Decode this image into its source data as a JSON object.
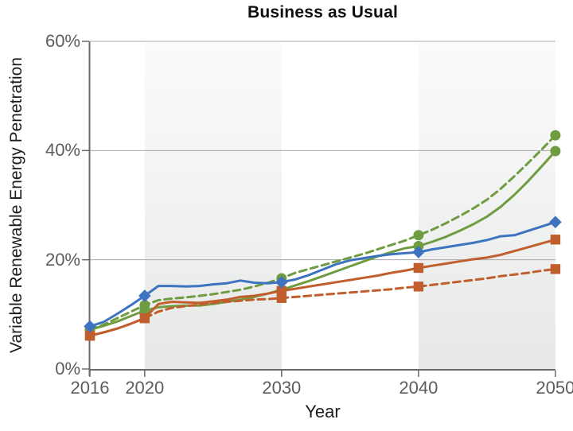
{
  "title": "Business as Usual",
  "axes": {
    "x_label": "Year",
    "y_label": "Variable Renewable Energy Penetration"
  },
  "colors": {
    "blue_series": "#3e73c0",
    "orange_series": "#c05f2d",
    "green_series": "#6f9c41",
    "gridline": "#a9a9a9",
    "axis_line": "#6a6a6a",
    "tick_label": "#5d5d5d",
    "band_top": "#fbfbfb",
    "band_bottom": "#e7e8e8"
  },
  "chart_data": {
    "type": "line",
    "title": "Business as Usual",
    "xlabel": "Year",
    "ylabel": "Variable Renewable Energy Penetration",
    "xlim": [
      2016,
      2050
    ],
    "ylim": [
      0,
      60
    ],
    "x_ticks": [
      2016,
      2020,
      2030,
      2040,
      2050
    ],
    "x_tick_labels": [
      "2016",
      "2020",
      "2030",
      "2040",
      "2050"
    ],
    "y_ticks": [
      0,
      20,
      40,
      60
    ],
    "y_tick_labels": [
      "0%",
      "20%",
      "40%",
      "60%"
    ],
    "grid": "horizontal gridlines at 20%, 40%, 60%",
    "legend_position": "none",
    "shaded_band_year_ranges": [
      [
        2020,
        2030
      ],
      [
        2040,
        2050
      ]
    ],
    "marker_years": [
      2016,
      2020,
      2030,
      2040,
      2050
    ],
    "x": [
      2016,
      2017,
      2018,
      2019,
      2020,
      2021,
      2022,
      2023,
      2024,
      2025,
      2026,
      2027,
      2028,
      2029,
      2030,
      2031,
      2032,
      2033,
      2034,
      2035,
      2036,
      2037,
      2038,
      2039,
      2040,
      2041,
      2042,
      2043,
      2044,
      2045,
      2046,
      2047,
      2048,
      2049,
      2050
    ],
    "series": [
      {
        "name": "green-dashed-circle",
        "color": "#6f9c41",
        "line_style": "dashed",
        "marker": "circle",
        "marker_values_at_ticks": [
          7.2,
          11.7,
          16.6,
          24.5,
          42.8
        ],
        "values": [
          7.2,
          8.1,
          9.3,
          10.5,
          11.7,
          12.6,
          12.9,
          13.1,
          13.4,
          13.7,
          14.1,
          14.5,
          15.1,
          15.8,
          16.6,
          17.6,
          18.3,
          19.0,
          19.7,
          20.4,
          21.1,
          21.9,
          22.7,
          23.5,
          24.5,
          25.5,
          26.7,
          28.0,
          29.4,
          31.0,
          33.0,
          35.3,
          37.7,
          40.2,
          42.8
        ]
      },
      {
        "name": "green-solid-circle",
        "color": "#6f9c41",
        "line_style": "solid",
        "marker": "circle",
        "marker_values_at_ticks": [
          7.2,
          10.7,
          14.5,
          22.5,
          39.9
        ],
        "values": [
          7.2,
          7.9,
          8.7,
          9.7,
          10.7,
          11.3,
          11.5,
          11.6,
          11.6,
          11.9,
          12.3,
          12.7,
          13.2,
          13.8,
          14.5,
          15.3,
          16.1,
          17.0,
          17.9,
          18.8,
          19.7,
          20.6,
          21.4,
          22.1,
          22.5,
          23.3,
          24.2,
          25.3,
          26.5,
          27.9,
          29.7,
          31.9,
          34.4,
          37.1,
          39.9
        ]
      },
      {
        "name": "orange-dashed-square",
        "color": "#c05f2d",
        "line_style": "dashed",
        "marker": "square",
        "marker_values_at_ticks": [
          6.1,
          9.3,
          13.0,
          15.1,
          18.3
        ],
        "values": [
          6.1,
          6.7,
          7.4,
          8.3,
          9.3,
          10.5,
          11.2,
          11.5,
          11.8,
          12.1,
          12.3,
          12.5,
          12.7,
          12.8,
          13.0,
          13.2,
          13.4,
          13.6,
          13.8,
          14.0,
          14.2,
          14.4,
          14.6,
          14.9,
          15.1,
          15.4,
          15.7,
          16.0,
          16.3,
          16.6,
          17.0,
          17.3,
          17.6,
          18.0,
          18.3
        ]
      },
      {
        "name": "orange-solid-square",
        "color": "#c05f2d",
        "line_style": "solid",
        "marker": "square",
        "marker_values_at_ticks": [
          6.1,
          9.3,
          14.3,
          18.5,
          23.7
        ],
        "values": [
          6.1,
          6.7,
          7.4,
          8.3,
          9.3,
          11.9,
          12.3,
          12.2,
          12.1,
          12.4,
          12.7,
          13.2,
          13.4,
          13.8,
          14.3,
          14.7,
          15.1,
          15.5,
          15.9,
          16.3,
          16.7,
          17.1,
          17.6,
          18.0,
          18.5,
          18.9,
          19.3,
          19.7,
          20.1,
          20.4,
          20.9,
          21.6,
          22.3,
          23.0,
          23.7
        ]
      },
      {
        "name": "blue-solid-diamond",
        "color": "#3e73c0",
        "line_style": "solid",
        "marker": "diamond",
        "marker_values_at_ticks": [
          7.8,
          13.4,
          15.9,
          21.4,
          26.9
        ],
        "values": [
          7.8,
          8.6,
          10.1,
          11.7,
          13.4,
          15.2,
          15.2,
          15.1,
          15.2,
          15.5,
          15.7,
          16.2,
          15.8,
          15.7,
          15.9,
          16.4,
          17.2,
          18.2,
          19.2,
          19.9,
          20.3,
          20.7,
          21.0,
          21.2,
          21.4,
          21.9,
          22.3,
          22.7,
          23.1,
          23.6,
          24.3,
          24.5,
          25.3,
          26.1,
          26.9
        ]
      }
    ]
  }
}
